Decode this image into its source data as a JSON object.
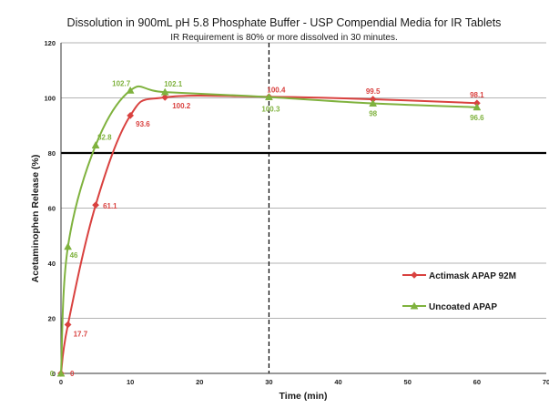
{
  "chart_data": {
    "type": "line",
    "title": "Dissolution in 900mL pH 5.8 Phosphate Buffer - USP Compendial Media for IR Tablets",
    "subtitle": "IR Requirement is 80% or more dissolved in 30 minutes.",
    "xlabel": "Time (min)",
    "ylabel": "Acetaminophen Release (%)",
    "xlim": [
      0,
      70
    ],
    "ylim": [
      0,
      120
    ],
    "xticks": [
      "0",
      "10",
      "20",
      "30",
      "40",
      "50",
      "60",
      "70"
    ],
    "yticks": [
      "0",
      "20",
      "40",
      "60",
      "80",
      "100",
      "120"
    ],
    "grid": true,
    "legend_position": "right",
    "reference_lines": [
      {
        "axis": "y",
        "value": 80,
        "style": "solid"
      },
      {
        "axis": "x",
        "value": 30,
        "style": "dashed"
      }
    ],
    "series": [
      {
        "name": "Actimask APAP 92M",
        "color": "#d9413f",
        "marker": "diamond",
        "x": [
          0,
          1,
          5,
          10,
          15,
          30,
          45,
          60
        ],
        "values": [
          0,
          17.7,
          61.1,
          93.6,
          100.2,
          100.4,
          99.5,
          98.1
        ],
        "labels": [
          "0",
          "17.7",
          "61.1",
          "93.6",
          "100.2",
          "100.4",
          "99.5",
          "98.1"
        ]
      },
      {
        "name": "Uncoated APAP",
        "color": "#7fb23e",
        "marker": "triangle",
        "x": [
          0,
          1,
          5,
          10,
          15,
          30,
          45,
          60
        ],
        "values": [
          0,
          46,
          82.8,
          102.7,
          102.1,
          100.3,
          98,
          96.6
        ],
        "labels": [
          "0",
          "46",
          "82.8",
          "102.7",
          "102.1",
          "100.3",
          "98",
          "96.6"
        ]
      }
    ]
  }
}
